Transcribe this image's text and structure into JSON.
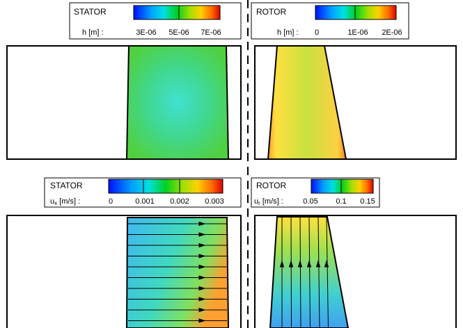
{
  "legends": [
    {
      "part": "STATOR",
      "symbol": "h",
      "unit": "[m]  :",
      "ticks": [
        "3E-06",
        "5E-06",
        "7E-06"
      ]
    },
    {
      "part": "ROTOR",
      "symbol": "h",
      "unit": "[m]  :",
      "ticks": [
        "0",
        "1E-06",
        "2E-06"
      ]
    },
    {
      "part": "STATOR",
      "symbol": "u",
      "subscript": "x",
      "unit": "[m/s] :",
      "ticks": [
        "0",
        "0.001",
        "0.002",
        "0.003"
      ]
    },
    {
      "part": "ROTOR",
      "symbol": "u",
      "subscript": "r",
      "unit": "[m/s] :",
      "ticks": [
        "0.05",
        "0.1",
        "0.15"
      ]
    }
  ]
}
